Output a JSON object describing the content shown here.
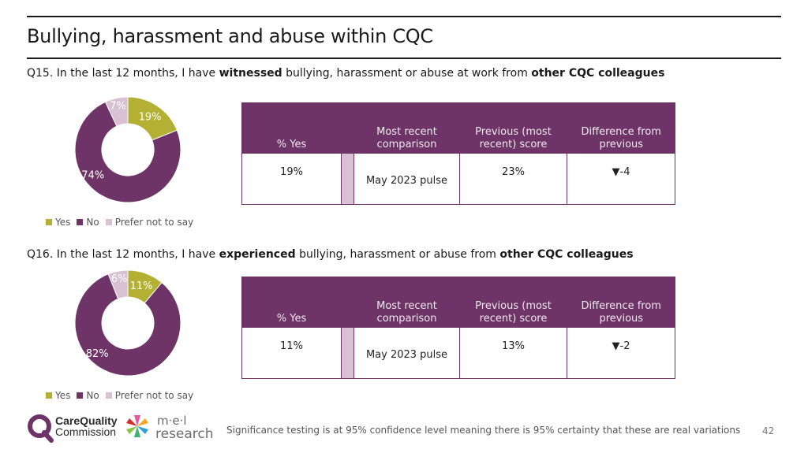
{
  "page": {
    "title": "Bullying, harassment and abuse within CQC",
    "footer_note": "Significance testing is at 95% confidence level meaning there is 95% certainty that these are real variations",
    "page_number": "42",
    "logos": {
      "cqc_line1": "CareQuality",
      "cqc_line2": "Commission",
      "mel_line1": "m·e·l",
      "mel_line2": "research"
    }
  },
  "colors": {
    "yes": "#b3b033",
    "no": "#6e3467",
    "prefer_not": "#d7c1d2",
    "header_bg": "#6e3467"
  },
  "table_headers": {
    "pct_yes": "% Yes",
    "recent_comparison": "Most recent comparison",
    "previous_score": "Previous (most recent) score",
    "difference": "Difference from previous"
  },
  "questions": [
    {
      "prefix": "Q15. In the last 12 months, I have ",
      "emph1": "witnessed",
      "middle": " bullying, harassment or abuse at work from ",
      "emph2": "other CQC colleagues",
      "table": {
        "pct_yes": "19%",
        "recent_comparison": "May 2023 pulse",
        "previous_score": "23%",
        "difference": "▼-4"
      }
    },
    {
      "prefix": "Q16. In the last 12 months, I have ",
      "emph1": "experienced",
      "middle": " bullying, harassment or abuse from ",
      "emph2": "other CQC colleagues",
      "table": {
        "pct_yes": "11%",
        "recent_comparison": "May 2023 pulse",
        "previous_score": "13%",
        "difference": "▼-2"
      }
    }
  ],
  "chart_data": [
    {
      "type": "pie",
      "title": "Q15 witnessed bullying, harassment or abuse",
      "categories": [
        "Yes",
        "No",
        "Prefer not to say"
      ],
      "values": [
        19,
        74,
        7
      ],
      "labels": [
        "19%",
        "74%",
        "7%"
      ],
      "legend": [
        "Yes",
        "No",
        "Prefer not to say"
      ],
      "legend_position": "bottom"
    },
    {
      "type": "pie",
      "title": "Q16 experienced bullying, harassment or abuse",
      "categories": [
        "Yes",
        "No",
        "Prefer not to say"
      ],
      "values": [
        11,
        82,
        6
      ],
      "labels": [
        "11%",
        "82%",
        "6%"
      ],
      "legend": [
        "Yes",
        "No",
        "Prefer not to say"
      ],
      "legend_position": "bottom"
    }
  ]
}
